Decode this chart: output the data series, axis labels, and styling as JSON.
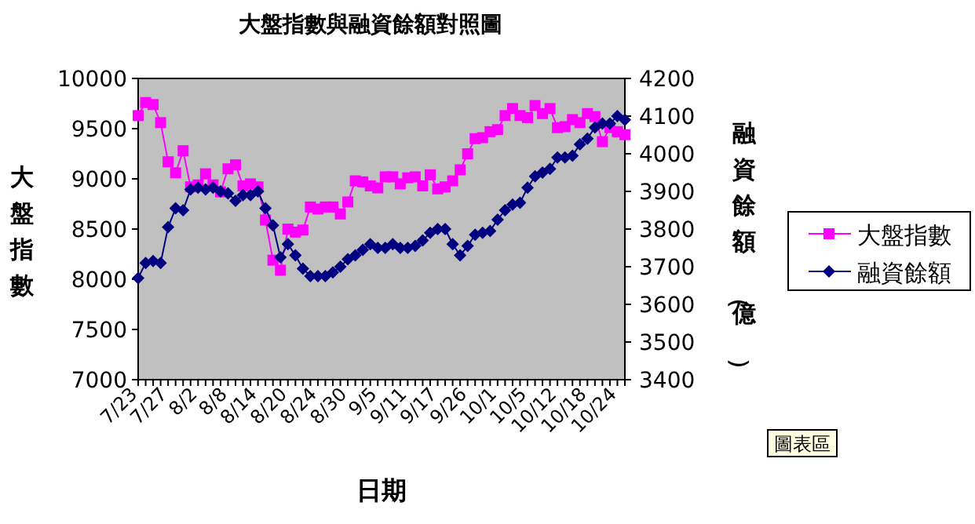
{
  "chart_data": {
    "type": "line",
    "title": "大盤指數與融資餘額對照圖",
    "xlabel": "日期",
    "ylabel": "大盤指數",
    "y2label": "融資餘額（億）",
    "categories": [
      "7/23",
      null,
      null,
      null,
      "7/27",
      null,
      null,
      null,
      "8/2",
      null,
      null,
      null,
      "8/8",
      null,
      null,
      null,
      "8/14",
      null,
      null,
      null,
      "8/20",
      null,
      null,
      null,
      "8/24",
      null,
      null,
      null,
      "8/30",
      null,
      null,
      null,
      "9/5",
      null,
      null,
      null,
      "9/11",
      null,
      null,
      null,
      "9/17",
      null,
      null,
      null,
      "9/26",
      null,
      null,
      null,
      "10/1",
      null,
      null,
      null,
      "10/5",
      null,
      null,
      null,
      "10/12",
      null,
      null,
      null,
      "10/18",
      null,
      null,
      null,
      "10/24",
      null
    ],
    "series": [
      {
        "name": "大盤指數",
        "color": "#ff00ff",
        "marker": "square",
        "values": [
          9630,
          9760,
          9740,
          9560,
          9170,
          9060,
          9280,
          8920,
          8940,
          9050,
          8940,
          8870,
          9100,
          9140,
          8930,
          8950,
          8920,
          8590,
          8190,
          8090,
          8500,
          8470,
          8490,
          8720,
          8700,
          8720,
          8720,
          8650,
          8770,
          8980,
          8970,
          8930,
          8910,
          9020,
          9020,
          8950,
          9010,
          9020,
          8930,
          9040,
          8900,
          8920,
          8980,
          9090,
          9250,
          9400,
          9410,
          9470,
          9490,
          9630,
          9700,
          9630,
          9610,
          9730,
          9650,
          9700,
          9510,
          9520,
          9590,
          9560,
          9650,
          9620,
          9370,
          9510,
          9470,
          9440
        ]
      },
      {
        "name": "融資餘額",
        "color": "#000080",
        "marker": "diamond",
        "axis": "y2",
        "values": [
          3670,
          3710,
          3715,
          3710,
          3805,
          3855,
          3850,
          3905,
          3910,
          3905,
          3910,
          3900,
          3895,
          3875,
          3890,
          3890,
          3900,
          3855,
          3810,
          3725,
          3760,
          3730,
          3695,
          3675,
          3675,
          3675,
          3685,
          3700,
          3720,
          3730,
          3745,
          3760,
          3750,
          3750,
          3760,
          3750,
          3750,
          3755,
          3770,
          3790,
          3800,
          3800,
          3760,
          3730,
          3755,
          3785,
          3790,
          3795,
          3825,
          3850,
          3865,
          3870,
          3910,
          3940,
          3950,
          3960,
          3990,
          3990,
          3995,
          4025,
          4040,
          4070,
          4080,
          4080,
          4100,
          4090
        ]
      }
    ],
    "ylim": [
      7000,
      10000
    ],
    "yticks": [
      7000,
      7500,
      8000,
      8500,
      9000,
      9500,
      10000
    ],
    "y2lim": [
      3400,
      4200
    ],
    "y2ticks": [
      3400,
      3500,
      3600,
      3700,
      3800,
      3900,
      4000,
      4100,
      4200
    ],
    "legend": "right",
    "grid": false,
    "annotations": [
      "圖表區"
    ]
  }
}
